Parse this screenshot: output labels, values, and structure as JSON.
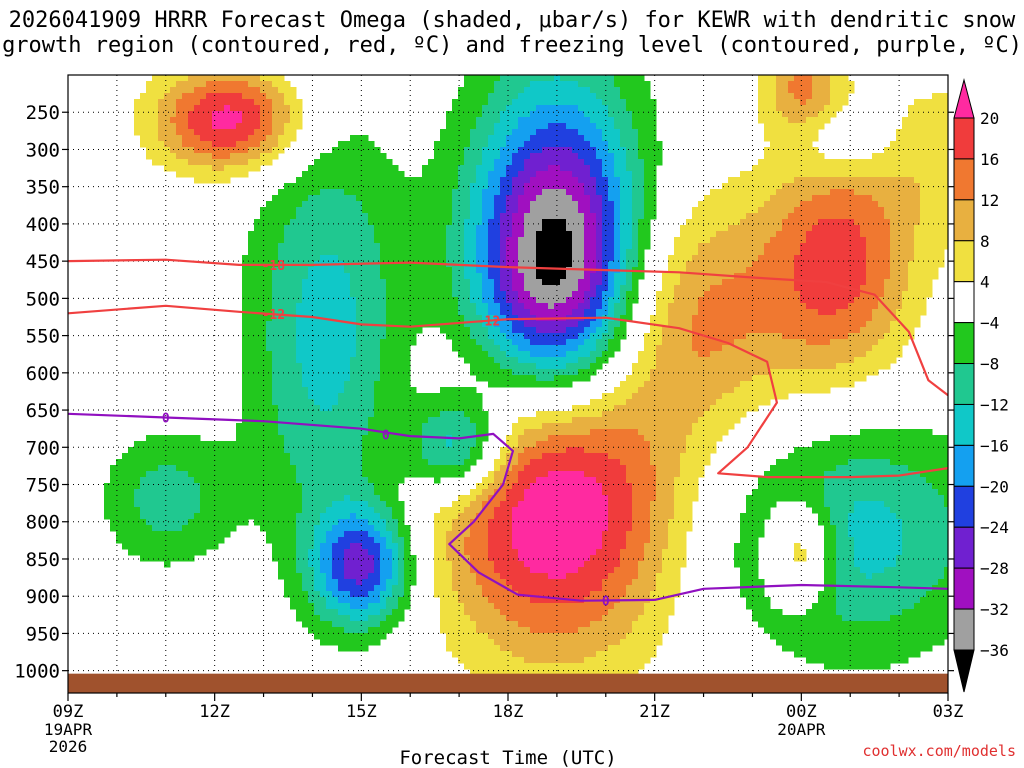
{
  "chart_data": {
    "type": "heatmap",
    "title_line1": "2026041909 HRRR Forecast Omega (shaded, μbar/s) for KEWR with dendritic snow",
    "title_line2": "growth region (contoured, red, ºC) and freezing level (contoured, purple, ºC)",
    "xlabel": "Forecast Time (UTC)",
    "x_ticks": [
      "09Z",
      "12Z",
      "15Z",
      "18Z",
      "21Z",
      "00Z",
      "03Z"
    ],
    "x_tick_hours": [
      0,
      3,
      6,
      9,
      12,
      15,
      18
    ],
    "x_sub": [
      {
        "hour": 0,
        "lines": [
          "19APR",
          "2026"
        ]
      },
      {
        "hour": 15,
        "lines": [
          "20APR"
        ]
      }
    ],
    "y_ticks": [
      250,
      300,
      350,
      400,
      450,
      500,
      550,
      600,
      650,
      700,
      750,
      800,
      850,
      900,
      950,
      1000
    ],
    "y_top": 200,
    "y_bottom": 1030,
    "colorbar_levels": [
      "20",
      "16",
      "12",
      "8",
      "4",
      "−4",
      "−8",
      "−12",
      "−16",
      "−20",
      "−24",
      "−28",
      "−32",
      "−36"
    ],
    "colorbar_colors": [
      "#ff2aa0",
      "#f03c3c",
      "#f07830",
      "#e8b040",
      "#f0e040",
      "#ffffff",
      "#22c81e",
      "#20c890",
      "#10c8c8",
      "#14a0f0",
      "#2040e0",
      "#7020d0",
      "#a010c0",
      "#a0a0a0",
      "#000000"
    ],
    "fields": {
      "omega_colors_ordered": [
        "#000000",
        "#a0a0a0",
        "#a010c0",
        "#7020d0",
        "#2040e0",
        "#14a0f0",
        "#10c8c8",
        "#20c890",
        "#22c81e",
        "#ffffff",
        "#f0e040",
        "#e8b040",
        "#f07830",
        "#f03c3c",
        "#ff2aa0"
      ],
      "blobs": [
        {
          "name": "upward-motion-core",
          "hour": 10.0,
          "p": 470,
          "dh": 1.7,
          "dp": 180,
          "peak": -40
        },
        {
          "name": "downward-core-low",
          "hour": 10.0,
          "p": 775,
          "dh": 2.4,
          "dp": 200,
          "peak": 26
        },
        {
          "name": "downward-upper-left",
          "hour": 3.3,
          "p": 260,
          "dh": 1.5,
          "dp": 70,
          "peak": 22
        },
        {
          "name": "updraft-left-column",
          "hour": 5.3,
          "p": 550,
          "dh": 1.6,
          "dp": 280,
          "peak": -14
        },
        {
          "name": "updraft-low-left",
          "hour": 6.0,
          "p": 860,
          "dh": 1.0,
          "dp": 80,
          "peak": -24
        },
        {
          "name": "updraft-mid",
          "hour": 8.0,
          "p": 700,
          "dh": 1.0,
          "dp": 70,
          "peak": -20
        },
        {
          "name": "updraft-far-left",
          "hour": 2.0,
          "p": 770,
          "dh": 1.3,
          "dp": 90,
          "peak": -10
        },
        {
          "name": "updraft-right-low",
          "hour": 16.0,
          "p": 820,
          "dh": 2.8,
          "dp": 160,
          "peak": -14
        },
        {
          "name": "downward-right-mid",
          "hour": 15.8,
          "p": 450,
          "dh": 1.5,
          "dp": 160,
          "peak": 17
        },
        {
          "name": "downward-mid-right",
          "hour": 12.8,
          "p": 520,
          "dh": 2.2,
          "dp": 160,
          "peak": 13
        },
        {
          "name": "downward-top-right",
          "hour": 15.0,
          "p": 215,
          "dh": 0.8,
          "dp": 70,
          "peak": 12
        },
        {
          "name": "downward-upper-far-right",
          "hour": 18.0,
          "p": 310,
          "dh": 1.4,
          "dp": 120,
          "peak": 6
        },
        {
          "name": "updraft-upper-mid",
          "hour": 10.0,
          "p": 270,
          "dh": 1.8,
          "dp": 160,
          "peak": -9
        },
        {
          "name": "updraft-top-right",
          "hour": 15.8,
          "p": 290,
          "dh": 1.1,
          "dp": 50,
          "peak": -7
        },
        {
          "name": "downward-low-right",
          "hour": 15.0,
          "p": 840,
          "dh": 0.7,
          "dp": 70,
          "peak": 16
        }
      ]
    },
    "contours": [
      {
        "name": "dgz-minus-18",
        "color": "#f04040",
        "label": "-18",
        "label_hour": 4.2,
        "points": [
          [
            0,
            450
          ],
          [
            2,
            448
          ],
          [
            3.5,
            455
          ],
          [
            5,
            455
          ],
          [
            7,
            452
          ],
          [
            9,
            458
          ],
          [
            11,
            462
          ],
          [
            12.5,
            465
          ],
          [
            14,
            472
          ],
          [
            15.5,
            478
          ],
          [
            16.5,
            495
          ],
          [
            17.2,
            545
          ],
          [
            17.6,
            610
          ],
          [
            18,
            630
          ]
        ]
      },
      {
        "name": "dgz-minus-12",
        "color": "#f04040",
        "label": "-12",
        "label_hour": 4.2,
        "points": [
          [
            0,
            520
          ],
          [
            2,
            510
          ],
          [
            3.5,
            518
          ],
          [
            5,
            525
          ],
          [
            6,
            535
          ],
          [
            7,
            538
          ],
          [
            9,
            528
          ],
          [
            11,
            526
          ],
          [
            12.5,
            540
          ],
          [
            13.5,
            560
          ],
          [
            14.3,
            585
          ],
          [
            14.5,
            640
          ],
          [
            13.9,
            700
          ],
          [
            13.3,
            735
          ],
          [
            14.3,
            740
          ],
          [
            16,
            740
          ],
          [
            17,
            738
          ],
          [
            18,
            728
          ]
        ]
      },
      {
        "name": "freezing-level-0",
        "color": "#9010c0",
        "label": "0",
        "label_hour": 2.0,
        "points": [
          [
            0,
            655
          ],
          [
            2,
            660
          ],
          [
            4,
            665
          ],
          [
            6,
            675
          ],
          [
            7,
            685
          ],
          [
            8,
            688
          ],
          [
            8.7,
            682
          ],
          [
            9.1,
            705
          ],
          [
            8.9,
            750
          ],
          [
            8.3,
            800
          ],
          [
            7.8,
            830
          ],
          [
            8.4,
            868
          ],
          [
            9.2,
            898
          ],
          [
            10.5,
            906
          ],
          [
            12,
            905
          ],
          [
            13,
            890
          ],
          [
            15,
            885
          ],
          [
            17,
            888
          ],
          [
            18,
            890
          ]
        ]
      }
    ],
    "contour_extra_labels": [
      {
        "contour": "dgz-minus-12",
        "label": "-12",
        "hour": 8.6,
        "p": 530
      },
      {
        "contour": "freezing-level-0",
        "label": "0",
        "hour": 6.5,
        "p": 683
      },
      {
        "contour": "freezing-level-0",
        "label": "0",
        "hour": 11.0,
        "p": 906
      }
    ],
    "terrain_color": "#a0522d",
    "credit": "coolwx.com/models"
  }
}
